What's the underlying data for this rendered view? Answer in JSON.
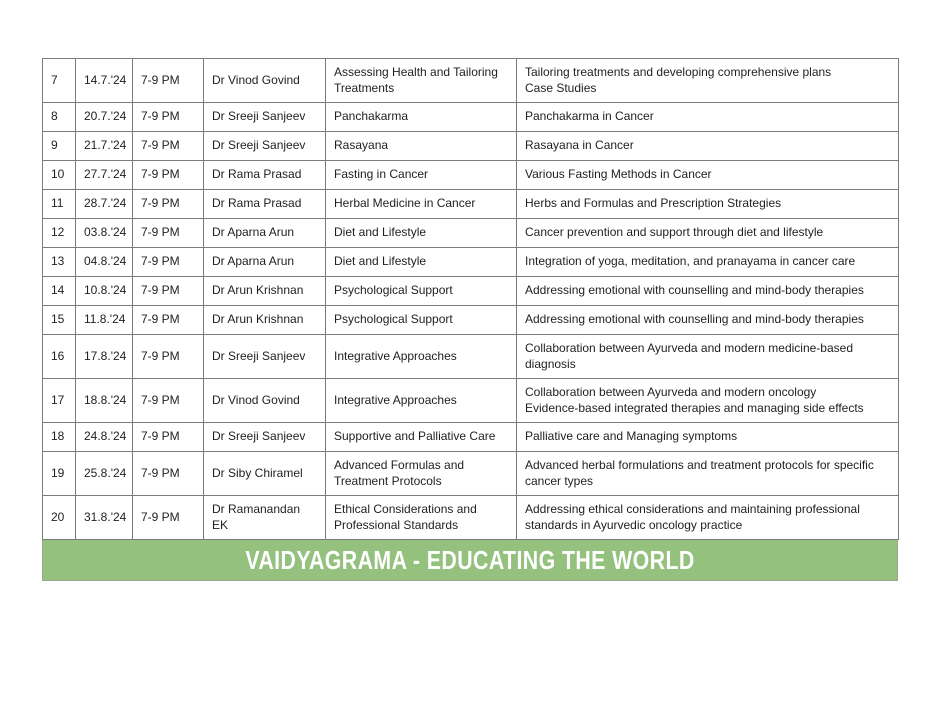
{
  "banner": {
    "text": "VAIDYAGRAMA - EDUCATING THE WORLD",
    "background_color": "#94c17e",
    "text_color": "#ffffff"
  },
  "schedule": {
    "rows": [
      {
        "no": "7",
        "date": "14.7.'24",
        "time": "7-9 PM",
        "doctor": "Dr Vinod Govind",
        "topic": "Assessing Health and Tailoring Treatments",
        "description": "Tailoring treatments and developing comprehensive plans\nCase Studies"
      },
      {
        "no": "8",
        "date": "20.7.'24",
        "time": "7-9 PM",
        "doctor": "Dr Sreeji Sanjeev",
        "topic": "Panchakarma",
        "description": "Panchakarma in Cancer"
      },
      {
        "no": "9",
        "date": "21.7.'24",
        "time": "7-9 PM",
        "doctor": "Dr Sreeji Sanjeev",
        "topic": "Rasayana",
        "description": "Rasayana in Cancer"
      },
      {
        "no": "10",
        "date": "27.7.'24",
        "time": "7-9 PM",
        "doctor": "Dr Rama Prasad",
        "topic": "Fasting in Cancer",
        "description": "Various Fasting Methods in Cancer"
      },
      {
        "no": "11",
        "date": "28.7.'24",
        "time": "7-9 PM",
        "doctor": "Dr Rama Prasad",
        "topic": "Herbal Medicine in Cancer",
        "description": "Herbs and Formulas and Prescription Strategies"
      },
      {
        "no": "12",
        "date": "03.8.'24",
        "time": "7-9 PM",
        "doctor": "Dr Aparna Arun",
        "topic": "Diet and Lifestyle",
        "description": "Cancer prevention and support through diet and lifestyle"
      },
      {
        "no": "13",
        "date": "04.8.'24",
        "time": "7-9 PM",
        "doctor": "Dr Aparna Arun",
        "topic": "Diet and Lifestyle",
        "description": "Integration of yoga, meditation, and pranayama in cancer care"
      },
      {
        "no": "14",
        "date": "10.8.'24",
        "time": "7-9 PM",
        "doctor": "Dr Arun Krishnan",
        "topic": "Psychological Support",
        "description": "Addressing emotional with counselling and mind-body therapies"
      },
      {
        "no": "15",
        "date": "11.8.'24",
        "time": "7-9 PM",
        "doctor": "Dr Arun Krishnan",
        "topic": "Psychological Support",
        "description": "Addressing emotional with counselling and mind-body therapies"
      },
      {
        "no": "16",
        "date": "17.8.'24",
        "time": "7-9 PM",
        "doctor": "Dr Sreeji Sanjeev",
        "topic": "Integrative Approaches",
        "description": "Collaboration between Ayurveda and modern medicine-based diagnosis"
      },
      {
        "no": "17",
        "date": "18.8.'24",
        "time": "7-9 PM",
        "doctor": "Dr Vinod Govind",
        "topic": "Integrative Approaches",
        "description": "Collaboration between Ayurveda and modern oncology\nEvidence-based integrated therapies and managing side effects"
      },
      {
        "no": "18",
        "date": "24.8.'24",
        "time": "7-9 PM",
        "doctor": "Dr Sreeji Sanjeev",
        "topic": "Supportive and Palliative Care",
        "description": "Palliative care and Managing symptoms"
      },
      {
        "no": "19",
        "date": "25.8.'24",
        "time": "7-9 PM",
        "doctor": "Dr Siby Chiramel",
        "topic": "Advanced Formulas and Treatment Protocols",
        "description": "Advanced herbal formulations and treatment protocols for specific cancer types"
      },
      {
        "no": "20",
        "date": "31.8.'24",
        "time": "7-9 PM",
        "doctor": "Dr Ramanandan EK",
        "topic": "Ethical Considerations and Professional Standards",
        "description": "Addressing ethical considerations and maintaining professional standards in Ayurvedic oncology practice"
      }
    ],
    "tall_rows": [
      "7",
      "16",
      "17",
      "19",
      "20"
    ]
  }
}
